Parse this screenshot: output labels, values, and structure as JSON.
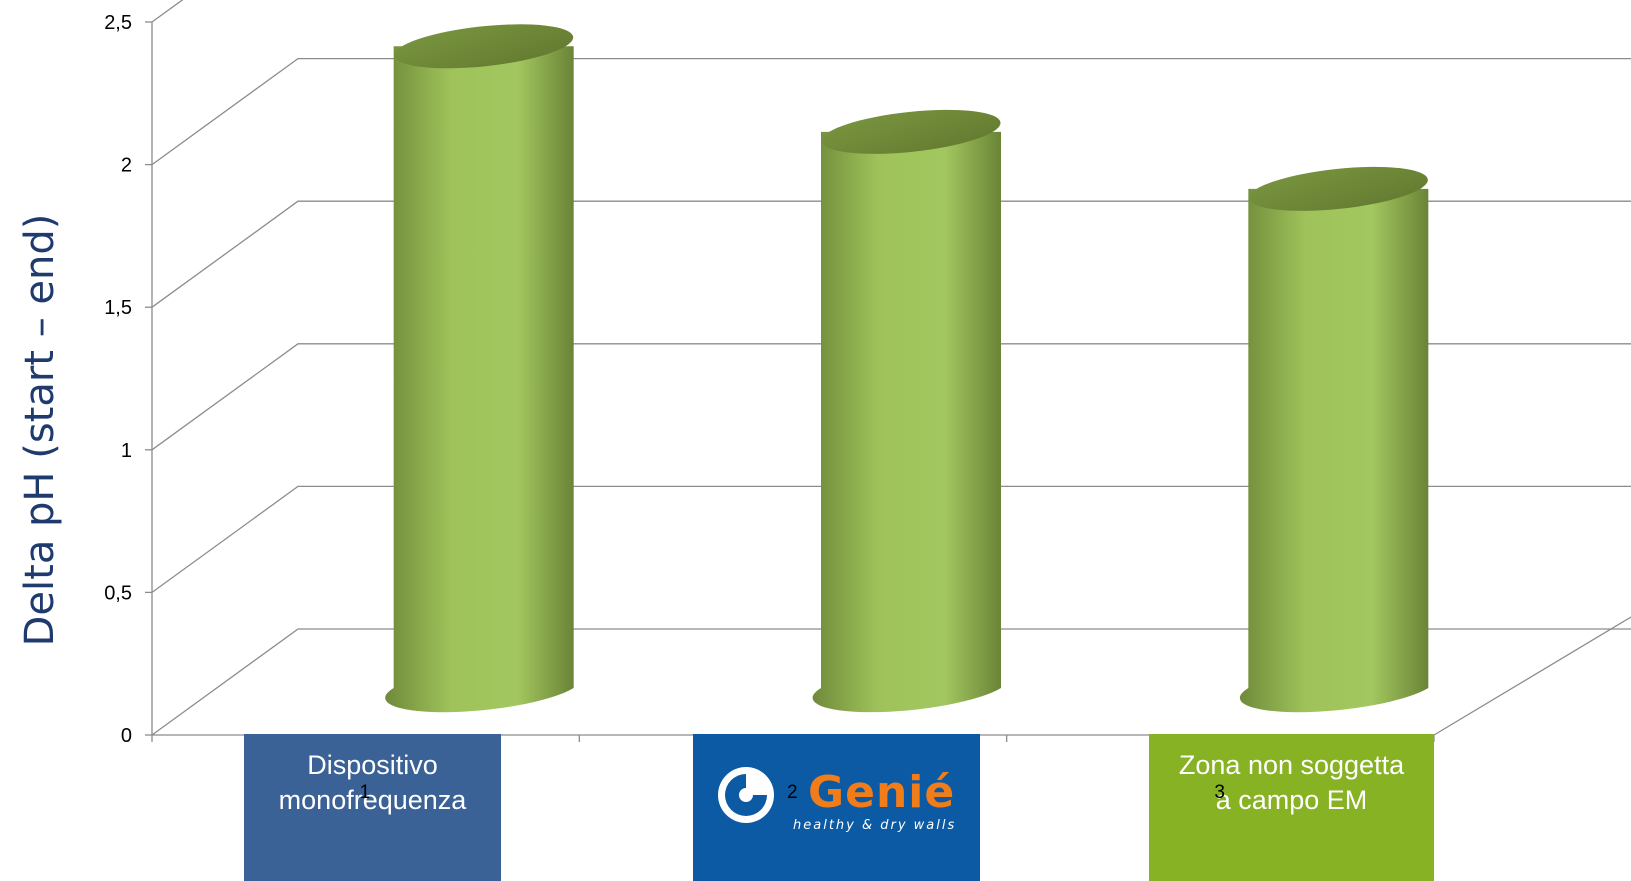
{
  "chart_data": {
    "type": "bar",
    "style": "3d-cylinder",
    "categories": [
      "1",
      "2",
      "3"
    ],
    "values": [
      2.25,
      1.95,
      1.75
    ],
    "ylabel": "Delta pH (start – end)",
    "ylim": [
      0,
      2.5
    ],
    "yticks": [
      "0",
      "0,5",
      "1",
      "1,5",
      "2",
      "2,5"
    ],
    "ytick_values": [
      0,
      0.5,
      1,
      1.5,
      2,
      2.5
    ],
    "grid": true,
    "bar_color": "#9bbb59",
    "category_labels": [
      {
        "text": "Dispositivo\nmonofrequenza",
        "color": "#3a6296"
      },
      {
        "text": "Genié",
        "tagline": "healthy & dry walls",
        "color": "#0b5aa3",
        "logo": "genie-logo",
        "logo_color": "#f07c1a"
      },
      {
        "text": "Zona non soggetta\na campo EM",
        "color": "#86b223"
      }
    ]
  }
}
